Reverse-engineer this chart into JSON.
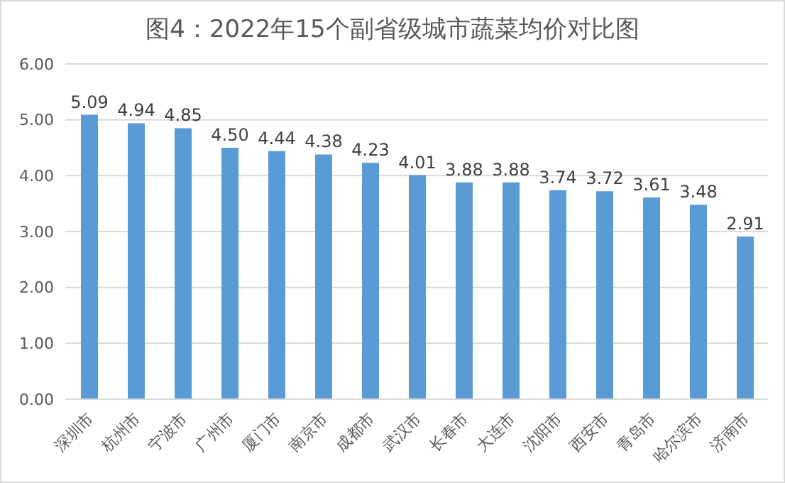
{
  "chart_data": {
    "type": "bar",
    "title": "图4：2022年15个副省级城市蔬菜均价对比图",
    "categories": [
      "深圳市",
      "杭州市",
      "宁波市",
      "广州市",
      "厦门市",
      "南京市",
      "成都市",
      "武汉市",
      "长春市",
      "大连市",
      "沈阳市",
      "西安市",
      "青岛市",
      "哈尔滨市",
      "济南市"
    ],
    "values": [
      5.09,
      4.94,
      4.85,
      4.5,
      4.44,
      4.38,
      4.23,
      4.01,
      3.88,
      3.88,
      3.74,
      3.72,
      3.61,
      3.48,
      2.91
    ],
    "value_labels": [
      "5.09",
      "4.94",
      "4.85",
      "4.50",
      "4.44",
      "4.38",
      "4.23",
      "4.01",
      "3.88",
      "3.88",
      "3.74",
      "3.72",
      "3.61",
      "3.48",
      "2.91"
    ],
    "color": "#5b9bd5",
    "ylim": [
      0,
      6
    ],
    "yticks": [
      {
        "value": 0,
        "label": "0.00"
      },
      {
        "value": 1,
        "label": "1.00"
      },
      {
        "value": 2,
        "label": "2.00"
      },
      {
        "value": 3,
        "label": "3.00"
      },
      {
        "value": 4,
        "label": "4.00"
      },
      {
        "value": 5,
        "label": "5.00"
      },
      {
        "value": 6,
        "label": "6.00"
      }
    ],
    "grid": "y"
  }
}
